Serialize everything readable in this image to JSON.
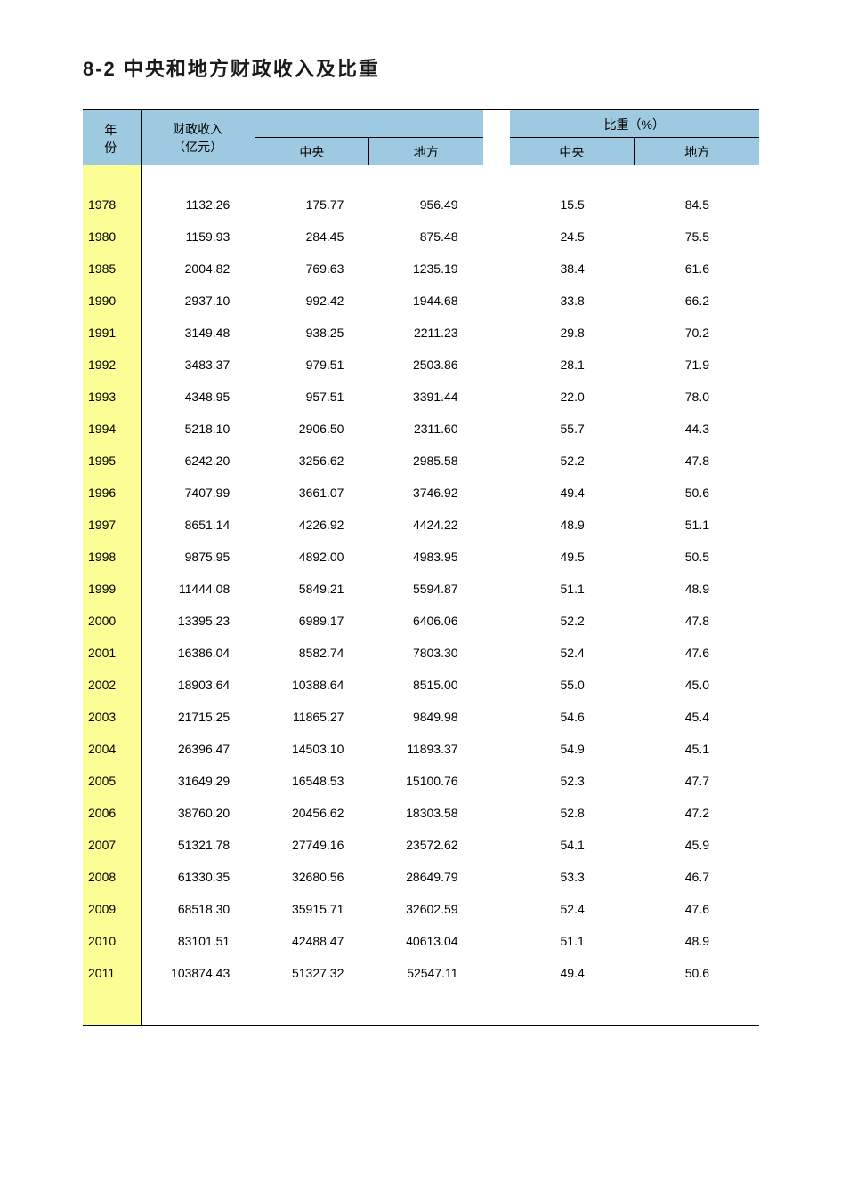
{
  "title": "8-2  中央和地方财政收入及比重",
  "colors": {
    "header_bg": "#9ecae1",
    "year_col_bg": "#fdfd96",
    "border": "#000000",
    "text": "#000000",
    "page_bg": "#ffffff"
  },
  "header": {
    "year": "年  份",
    "total_line1": "财政收入",
    "total_line2": "（亿元）",
    "central": "中央",
    "local": "地方",
    "proportion": "比重（%）"
  },
  "rows": [
    {
      "year": "1978",
      "total": "1132.26",
      "central": "175.77",
      "local": "956.49",
      "pct_c": "15.5",
      "pct_l": "84.5"
    },
    {
      "year": "1980",
      "total": "1159.93",
      "central": "284.45",
      "local": "875.48",
      "pct_c": "24.5",
      "pct_l": "75.5"
    },
    {
      "year": "1985",
      "total": "2004.82",
      "central": "769.63",
      "local": "1235.19",
      "pct_c": "38.4",
      "pct_l": "61.6"
    },
    {
      "year": "1990",
      "total": "2937.10",
      "central": "992.42",
      "local": "1944.68",
      "pct_c": "33.8",
      "pct_l": "66.2"
    },
    {
      "year": "1991",
      "total": "3149.48",
      "central": "938.25",
      "local": "2211.23",
      "pct_c": "29.8",
      "pct_l": "70.2"
    },
    {
      "year": "1992",
      "total": "3483.37",
      "central": "979.51",
      "local": "2503.86",
      "pct_c": "28.1",
      "pct_l": "71.9"
    },
    {
      "year": "1993",
      "total": "4348.95",
      "central": "957.51",
      "local": "3391.44",
      "pct_c": "22.0",
      "pct_l": "78.0"
    },
    {
      "year": "1994",
      "total": "5218.10",
      "central": "2906.50",
      "local": "2311.60",
      "pct_c": "55.7",
      "pct_l": "44.3"
    },
    {
      "year": "1995",
      "total": "6242.20",
      "central": "3256.62",
      "local": "2985.58",
      "pct_c": "52.2",
      "pct_l": "47.8"
    },
    {
      "year": "1996",
      "total": "7407.99",
      "central": "3661.07",
      "local": "3746.92",
      "pct_c": "49.4",
      "pct_l": "50.6"
    },
    {
      "year": "1997",
      "total": "8651.14",
      "central": "4226.92",
      "local": "4424.22",
      "pct_c": "48.9",
      "pct_l": "51.1"
    },
    {
      "year": "1998",
      "total": "9875.95",
      "central": "4892.00",
      "local": "4983.95",
      "pct_c": "49.5",
      "pct_l": "50.5"
    },
    {
      "year": "1999",
      "total": "11444.08",
      "central": "5849.21",
      "local": "5594.87",
      "pct_c": "51.1",
      "pct_l": "48.9"
    },
    {
      "year": "2000",
      "total": "13395.23",
      "central": "6989.17",
      "local": "6406.06",
      "pct_c": "52.2",
      "pct_l": "47.8"
    },
    {
      "year": "2001",
      "total": "16386.04",
      "central": "8582.74",
      "local": "7803.30",
      "pct_c": "52.4",
      "pct_l": "47.6"
    },
    {
      "year": "2002",
      "total": "18903.64",
      "central": "10388.64",
      "local": "8515.00",
      "pct_c": "55.0",
      "pct_l": "45.0"
    },
    {
      "year": "2003",
      "total": "21715.25",
      "central": "11865.27",
      "local": "9849.98",
      "pct_c": "54.6",
      "pct_l": "45.4"
    },
    {
      "year": "2004",
      "total": "26396.47",
      "central": "14503.10",
      "local": "11893.37",
      "pct_c": "54.9",
      "pct_l": "45.1"
    },
    {
      "year": "2005",
      "total": "31649.29",
      "central": "16548.53",
      "local": "15100.76",
      "pct_c": "52.3",
      "pct_l": "47.7"
    },
    {
      "year": "2006",
      "total": "38760.20",
      "central": "20456.62",
      "local": "18303.58",
      "pct_c": "52.8",
      "pct_l": "47.2"
    },
    {
      "year": "2007",
      "total": "51321.78",
      "central": "27749.16",
      "local": "23572.62",
      "pct_c": "54.1",
      "pct_l": "45.9"
    },
    {
      "year": "2008",
      "total": "61330.35",
      "central": "32680.56",
      "local": "28649.79",
      "pct_c": "53.3",
      "pct_l": "46.7"
    },
    {
      "year": "2009",
      "total": "68518.30",
      "central": "35915.71",
      "local": "32602.59",
      "pct_c": "52.4",
      "pct_l": "47.6"
    },
    {
      "year": "2010",
      "total": "83101.51",
      "central": "42488.47",
      "local": "40613.04",
      "pct_c": "51.1",
      "pct_l": "48.9"
    },
    {
      "year": "2011",
      "total": "103874.43",
      "central": "51327.32",
      "local": "52547.11",
      "pct_c": "49.4",
      "pct_l": "50.6"
    }
  ]
}
